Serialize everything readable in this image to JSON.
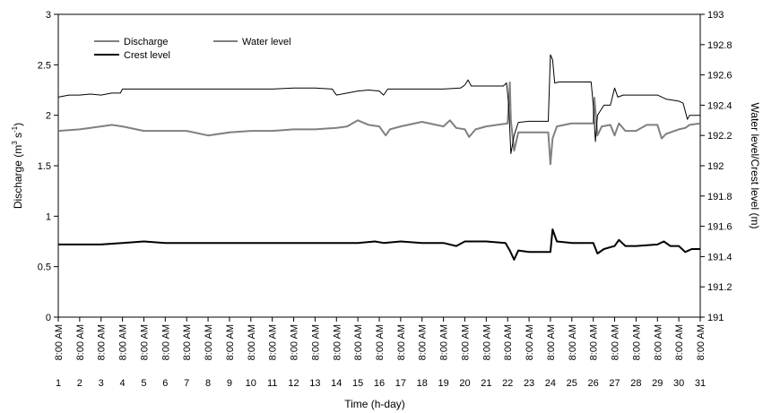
{
  "chart_data": {
    "type": "line",
    "title": "",
    "xlabel": "Time (h-day)",
    "ylabel_left": "Discharge (m3 s-1)",
    "ylabel_left_parts": {
      "main": "Discharge (m",
      "sup1": "3",
      "mid": " s",
      "sup2": "-1",
      "end": ")"
    },
    "ylabel_right": "Water level/Crest level (m)",
    "x_tick_time": "8:00 AM",
    "x_tick_days": [
      "1",
      "2",
      "3",
      "4",
      "5",
      "6",
      "7",
      "8",
      "9",
      "10",
      "11",
      "12",
      "13",
      "14",
      "15",
      "16",
      "17",
      "18",
      "19",
      "20",
      "21",
      "22",
      "23",
      "24",
      "25",
      "26",
      "27",
      "28",
      "29",
      "30",
      "31"
    ],
    "xlim": [
      1,
      31
    ],
    "ylim_left": [
      0,
      3
    ],
    "ylim_right": [
      191,
      193
    ],
    "y_ticks_left": [
      "0",
      "0.5",
      "1",
      "1.5",
      "2",
      "2.5",
      "3"
    ],
    "y_ticks_right": [
      "191",
      "191.2",
      "191.4",
      "191.6",
      "191.8",
      "192",
      "192.2",
      "192.4",
      "192.6",
      "192.8",
      "193"
    ],
    "grid": false,
    "legend_position": "top-left",
    "series": [
      {
        "name": "Discharge",
        "axis": "left",
        "color": "#000000",
        "points": [
          [
            1.0,
            2.18
          ],
          [
            1.5,
            2.2
          ],
          [
            2.0,
            2.2
          ],
          [
            2.5,
            2.21
          ],
          [
            3.0,
            2.2
          ],
          [
            3.5,
            2.22
          ],
          [
            3.9,
            2.22
          ],
          [
            4.0,
            2.26
          ],
          [
            5.0,
            2.26
          ],
          [
            6.0,
            2.26
          ],
          [
            7.0,
            2.26
          ],
          [
            8.0,
            2.26
          ],
          [
            9.0,
            2.26
          ],
          [
            10.0,
            2.26
          ],
          [
            11.0,
            2.26
          ],
          [
            12.0,
            2.27
          ],
          [
            13.0,
            2.27
          ],
          [
            13.8,
            2.26
          ],
          [
            14.0,
            2.2
          ],
          [
            14.5,
            2.22
          ],
          [
            15.0,
            2.24
          ],
          [
            15.5,
            2.25
          ],
          [
            16.0,
            2.24
          ],
          [
            16.2,
            2.2
          ],
          [
            16.4,
            2.26
          ],
          [
            17.0,
            2.26
          ],
          [
            18.0,
            2.26
          ],
          [
            19.0,
            2.26
          ],
          [
            19.8,
            2.27
          ],
          [
            20.0,
            2.3
          ],
          [
            20.15,
            2.35
          ],
          [
            20.3,
            2.29
          ],
          [
            21.0,
            2.29
          ],
          [
            21.8,
            2.29
          ],
          [
            21.95,
            2.32
          ],
          [
            22.05,
            2.1
          ],
          [
            22.15,
            1.62
          ],
          [
            22.3,
            1.8
          ],
          [
            22.5,
            1.93
          ],
          [
            23.0,
            1.94
          ],
          [
            23.9,
            1.94
          ],
          [
            24.0,
            2.6
          ],
          [
            24.1,
            2.55
          ],
          [
            24.2,
            2.32
          ],
          [
            24.4,
            2.33
          ],
          [
            25.0,
            2.33
          ],
          [
            25.9,
            2.33
          ],
          [
            26.0,
            2.1
          ],
          [
            26.1,
            1.74
          ],
          [
            26.2,
            2.0
          ],
          [
            26.5,
            2.1
          ],
          [
            26.8,
            2.1
          ],
          [
            27.0,
            2.27
          ],
          [
            27.15,
            2.18
          ],
          [
            27.4,
            2.2
          ],
          [
            28.0,
            2.2
          ],
          [
            29.0,
            2.2
          ],
          [
            29.4,
            2.16
          ],
          [
            30.0,
            2.14
          ],
          [
            30.2,
            2.12
          ],
          [
            30.4,
            1.96
          ],
          [
            30.5,
            2.0
          ],
          [
            31.0,
            2.0
          ]
        ]
      },
      {
        "name": "Water level",
        "axis": "right",
        "color": "#808080",
        "points": [
          [
            1.0,
            192.23
          ],
          [
            2.0,
            192.24
          ],
          [
            3.0,
            192.26
          ],
          [
            3.5,
            192.27
          ],
          [
            4.0,
            192.26
          ],
          [
            5.0,
            192.23
          ],
          [
            6.0,
            192.23
          ],
          [
            7.0,
            192.23
          ],
          [
            8.0,
            192.2
          ],
          [
            9.0,
            192.22
          ],
          [
            10.0,
            192.23
          ],
          [
            11.0,
            192.23
          ],
          [
            12.0,
            192.24
          ],
          [
            13.0,
            192.24
          ],
          [
            14.0,
            192.25
          ],
          [
            14.5,
            192.26
          ],
          [
            15.0,
            192.3
          ],
          [
            15.5,
            192.27
          ],
          [
            16.0,
            192.26
          ],
          [
            16.3,
            192.2
          ],
          [
            16.5,
            192.24
          ],
          [
            17.0,
            192.26
          ],
          [
            18.0,
            192.29
          ],
          [
            19.0,
            192.26
          ],
          [
            19.3,
            192.3
          ],
          [
            19.6,
            192.25
          ],
          [
            20.0,
            192.24
          ],
          [
            20.2,
            192.19
          ],
          [
            20.5,
            192.24
          ],
          [
            21.0,
            192.26
          ],
          [
            21.5,
            192.27
          ],
          [
            22.0,
            192.28
          ],
          [
            22.1,
            192.55
          ],
          [
            22.15,
            192.3
          ],
          [
            22.3,
            192.1
          ],
          [
            22.5,
            192.22
          ],
          [
            23.0,
            192.22
          ],
          [
            23.9,
            192.22
          ],
          [
            24.0,
            192.01
          ],
          [
            24.1,
            192.18
          ],
          [
            24.3,
            192.26
          ],
          [
            25.0,
            192.28
          ],
          [
            26.0,
            192.28
          ],
          [
            26.05,
            192.45
          ],
          [
            26.2,
            192.2
          ],
          [
            26.4,
            192.26
          ],
          [
            26.8,
            192.27
          ],
          [
            27.0,
            192.2
          ],
          [
            27.2,
            192.28
          ],
          [
            27.5,
            192.23
          ],
          [
            28.0,
            192.23
          ],
          [
            28.5,
            192.27
          ],
          [
            29.0,
            192.27
          ],
          [
            29.2,
            192.18
          ],
          [
            29.4,
            192.21
          ],
          [
            30.0,
            192.24
          ],
          [
            30.3,
            192.25
          ],
          [
            30.5,
            192.27
          ],
          [
            31.0,
            192.28
          ]
        ]
      },
      {
        "name": "Crest level",
        "axis": "right",
        "color": "#000000",
        "points": [
          [
            1.0,
            191.48
          ],
          [
            2.0,
            191.48
          ],
          [
            3.0,
            191.48
          ],
          [
            4.0,
            191.49
          ],
          [
            5.0,
            191.5
          ],
          [
            6.0,
            191.49
          ],
          [
            7.0,
            191.49
          ],
          [
            8.0,
            191.49
          ],
          [
            9.0,
            191.49
          ],
          [
            10.0,
            191.49
          ],
          [
            11.0,
            191.49
          ],
          [
            12.0,
            191.49
          ],
          [
            13.0,
            191.49
          ],
          [
            14.0,
            191.49
          ],
          [
            15.0,
            191.49
          ],
          [
            15.8,
            191.5
          ],
          [
            16.2,
            191.49
          ],
          [
            17.0,
            191.5
          ],
          [
            18.0,
            191.49
          ],
          [
            19.0,
            191.49
          ],
          [
            19.6,
            191.47
          ],
          [
            20.0,
            191.5
          ],
          [
            21.0,
            191.5
          ],
          [
            21.9,
            191.49
          ],
          [
            22.1,
            191.44
          ],
          [
            22.3,
            191.38
          ],
          [
            22.5,
            191.44
          ],
          [
            23.0,
            191.43
          ],
          [
            24.0,
            191.43
          ],
          [
            24.1,
            191.58
          ],
          [
            24.3,
            191.5
          ],
          [
            25.0,
            191.49
          ],
          [
            26.0,
            191.49
          ],
          [
            26.2,
            191.42
          ],
          [
            26.5,
            191.45
          ],
          [
            27.0,
            191.47
          ],
          [
            27.2,
            191.51
          ],
          [
            27.5,
            191.47
          ],
          [
            28.0,
            191.47
          ],
          [
            29.0,
            191.48
          ],
          [
            29.3,
            191.5
          ],
          [
            29.6,
            191.47
          ],
          [
            30.0,
            191.47
          ],
          [
            30.3,
            191.43
          ],
          [
            30.6,
            191.45
          ],
          [
            31.0,
            191.45
          ]
        ]
      }
    ]
  }
}
